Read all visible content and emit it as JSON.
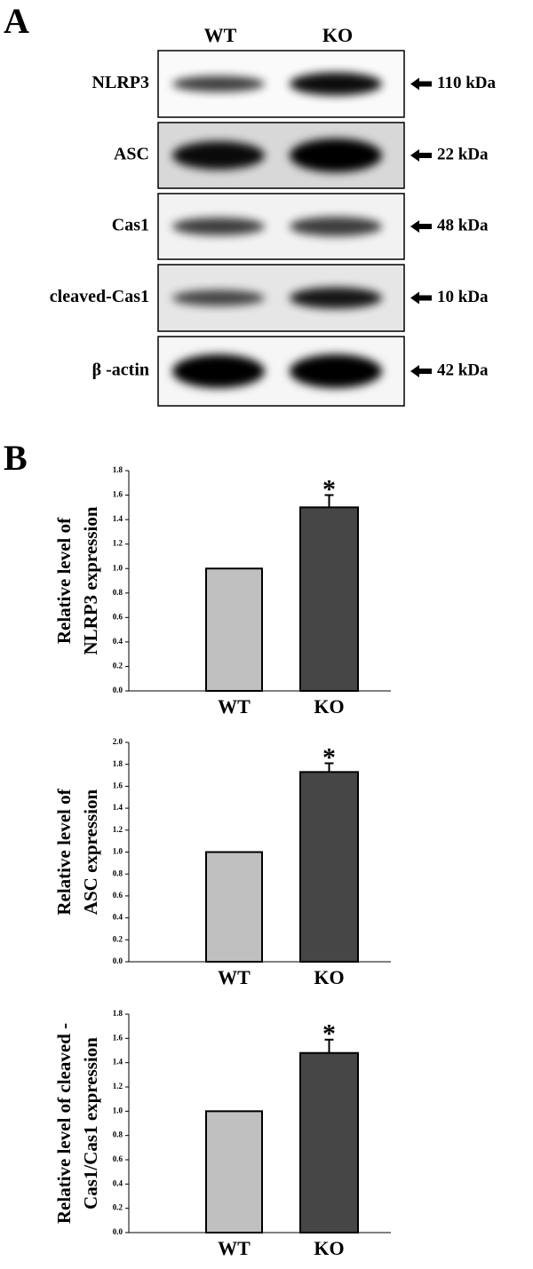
{
  "panel_labels": [
    "A",
    "B"
  ],
  "blot": {
    "lanes": [
      "WT",
      "KO"
    ],
    "rows": [
      {
        "label": "NLRP3",
        "size": "110 kDa"
      },
      {
        "label": "ASC",
        "size": "22 kDa"
      },
      {
        "label": "Cas1",
        "size": "48 kDa"
      },
      {
        "label": "cleaved-Cas1",
        "size": "10 kDa"
      },
      {
        "label": "β -actin",
        "size": "42 kDa"
      }
    ]
  },
  "chart_data": [
    {
      "type": "bar",
      "ylabel": [
        "Relative level of",
        "NLRP3 expression"
      ],
      "categories": [
        "WT",
        "KO"
      ],
      "values": [
        1.0,
        1.5
      ],
      "errors": [
        null,
        0.1
      ],
      "colors": [
        "#c0c0c0",
        "#464646"
      ],
      "annotation": "*",
      "ylim": [
        0,
        1.8
      ],
      "yticks": [
        {
          "value": 0,
          "label": "0.0"
        },
        0.2,
        0.4,
        0.6,
        0.8,
        {
          "value": 1,
          "label": "1.0"
        },
        1.2,
        1.4,
        1.6,
        1.8
      ]
    },
    {
      "type": "bar",
      "ylabel": [
        "Relative level of",
        "ASC expression"
      ],
      "categories": [
        "WT",
        "KO"
      ],
      "values": [
        1.0,
        1.73
      ],
      "errors": [
        null,
        0.08
      ],
      "colors": [
        "#c0c0c0",
        "#464646"
      ],
      "annotation": "*",
      "ylim": [
        0,
        2
      ],
      "yticks": [
        {
          "value": 0,
          "label": "0.0"
        },
        0.2,
        0.4,
        0.6,
        0.8,
        {
          "value": 1,
          "label": "1.0"
        },
        1.2,
        1.4,
        1.6,
        1.8,
        {
          "value": 2,
          "label": "2.0"
        }
      ]
    },
    {
      "type": "bar",
      "ylabel": [
        "Relative level of  cleaved -",
        "Cas1/Cas1 expression"
      ],
      "categories": [
        "WT",
        "KO"
      ],
      "values": [
        1.0,
        1.48
      ],
      "errors": [
        null,
        0.11
      ],
      "colors": [
        "#c0c0c0",
        "#464646"
      ],
      "annotation": "*",
      "ylim": [
        0,
        1.8
      ],
      "yticks": [
        {
          "value": 0,
          "label": "0.0"
        },
        0.2,
        0.4,
        0.6,
        0.8,
        {
          "value": 1,
          "label": "1.0"
        },
        1.2,
        1.4,
        1.6,
        1.8
      ]
    }
  ]
}
